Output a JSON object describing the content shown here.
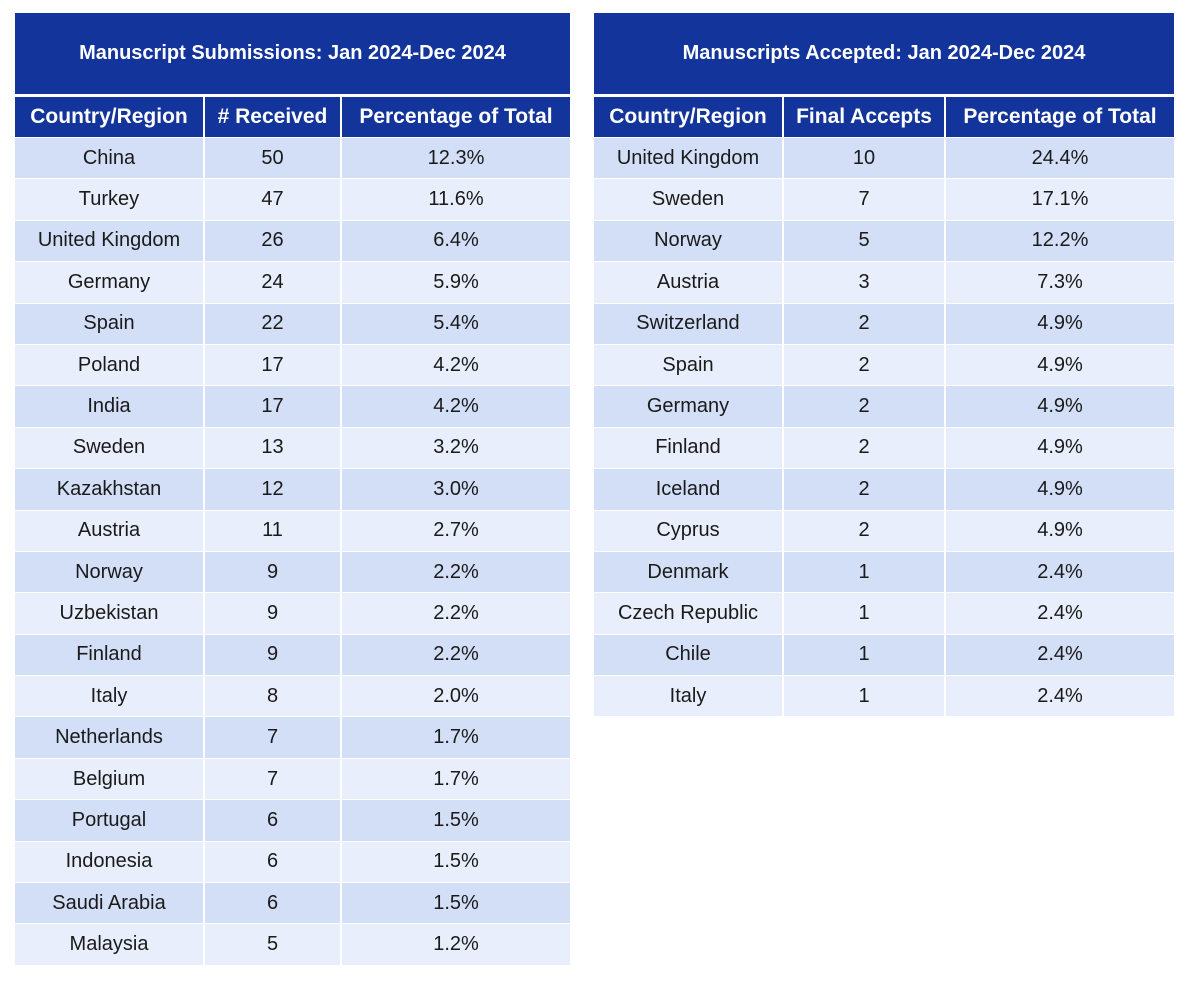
{
  "submissions": {
    "title": "Manuscript Submissions: Jan 2024-Dec  2024",
    "headers": [
      "Country/Region",
      "# Received",
      "Percentage of Total"
    ],
    "rows": [
      [
        "China",
        "50",
        "12.3%"
      ],
      [
        "Turkey",
        "47",
        "11.6%"
      ],
      [
        "United Kingdom",
        "26",
        "6.4%"
      ],
      [
        "Germany",
        "24",
        "5.9%"
      ],
      [
        "Spain",
        "22",
        "5.4%"
      ],
      [
        "Poland",
        "17",
        "4.2%"
      ],
      [
        "India",
        "17",
        "4.2%"
      ],
      [
        "Sweden",
        "13",
        "3.2%"
      ],
      [
        "Kazakhstan",
        "12",
        "3.0%"
      ],
      [
        "Austria",
        "11",
        "2.7%"
      ],
      [
        "Norway",
        "9",
        "2.2%"
      ],
      [
        "Uzbekistan",
        "9",
        "2.2%"
      ],
      [
        "Finland",
        "9",
        "2.2%"
      ],
      [
        "Italy",
        "8",
        "2.0%"
      ],
      [
        "Netherlands",
        "7",
        "1.7%"
      ],
      [
        "Belgium",
        "7",
        "1.7%"
      ],
      [
        "Portugal",
        "6",
        "1.5%"
      ],
      [
        "Indonesia",
        "6",
        "1.5%"
      ],
      [
        "Saudi Arabia",
        "6",
        "1.5%"
      ],
      [
        "Malaysia",
        "5",
        "1.2%"
      ]
    ]
  },
  "accepted": {
    "title": "Manuscripts Accepted: Jan 2024-Dec  2024",
    "headers": [
      "Country/Region",
      "Final Accepts",
      "Percentage of Total"
    ],
    "rows": [
      [
        "United Kingdom",
        "10",
        "24.4%"
      ],
      [
        "Sweden",
        "7",
        "17.1%"
      ],
      [
        "Norway",
        "5",
        "12.2%"
      ],
      [
        "Austria",
        "3",
        "7.3%"
      ],
      [
        "Switzerland",
        "2",
        "4.9%"
      ],
      [
        "Spain",
        "2",
        "4.9%"
      ],
      [
        "Germany",
        "2",
        "4.9%"
      ],
      [
        "Finland",
        "2",
        "4.9%"
      ],
      [
        "Iceland",
        "2",
        "4.9%"
      ],
      [
        "Cyprus",
        "2",
        "4.9%"
      ],
      [
        "Denmark",
        "1",
        "2.4%"
      ],
      [
        "Czech Republic",
        "1",
        "2.4%"
      ],
      [
        "Chile",
        "1",
        "2.4%"
      ],
      [
        "Italy",
        "1",
        "2.4%"
      ]
    ]
  },
  "colors": {
    "header_blue": "#13359b",
    "row_odd": "#d3def7",
    "row_even": "#e8eefb"
  }
}
